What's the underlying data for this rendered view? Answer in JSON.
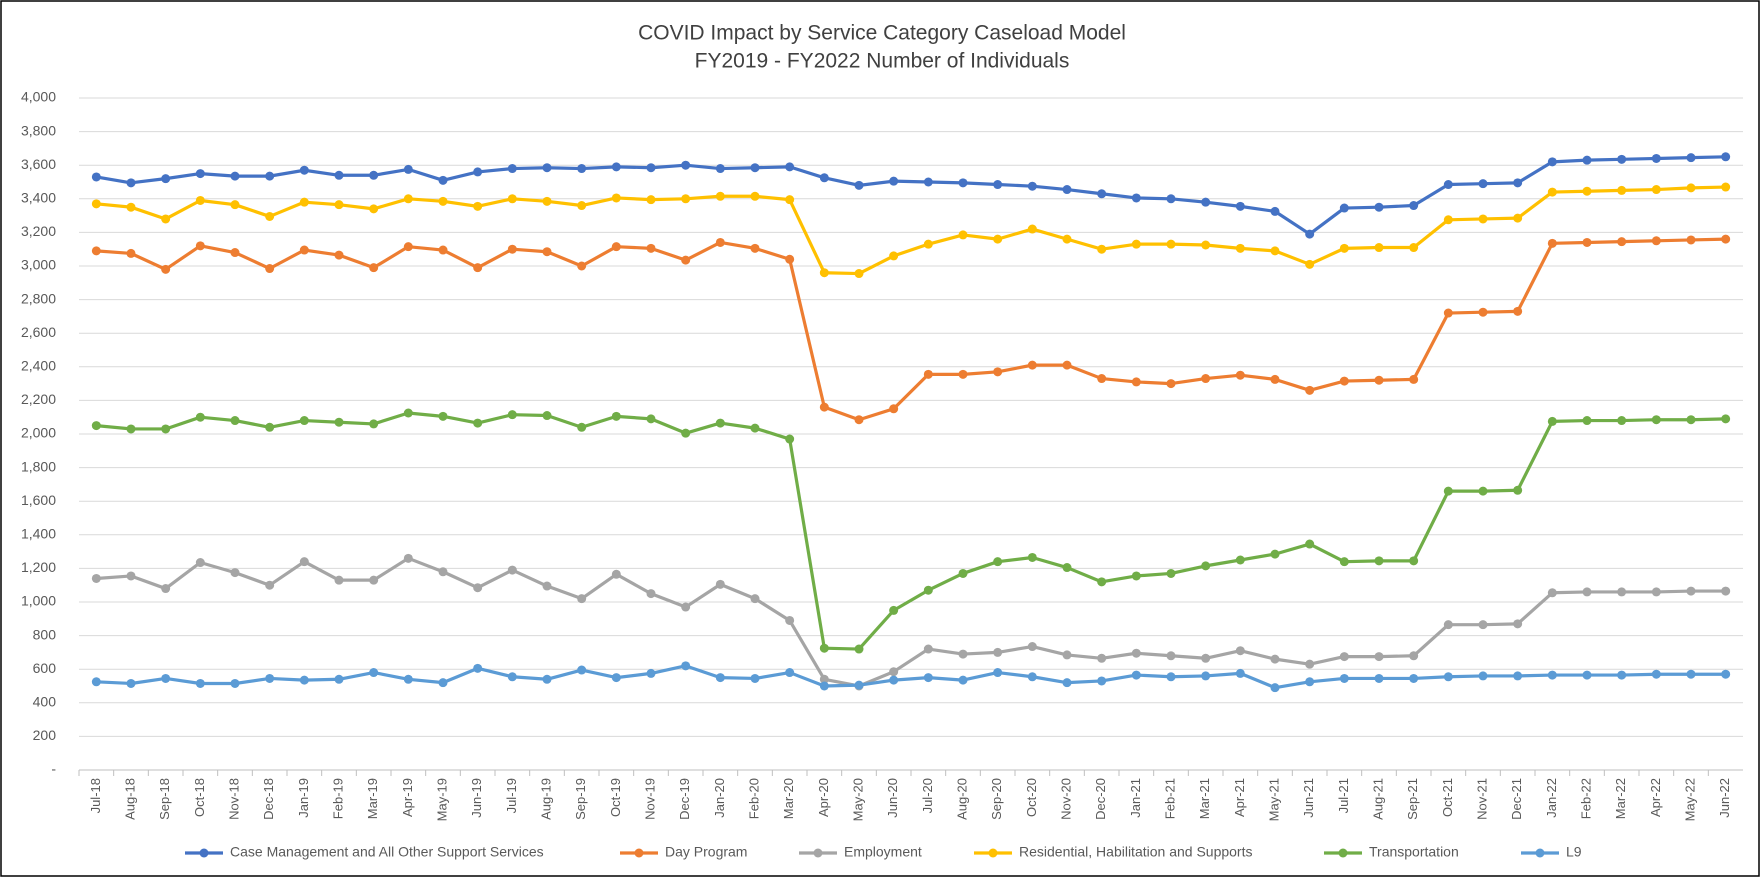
{
  "chart_data": {
    "type": "line",
    "title": "COVID Impact by Service Category Caseload Model",
    "subtitle": "FY2019 - FY2022 Number of Individuals",
    "categories": [
      "Jul-18",
      "Aug-18",
      "Sep-18",
      "Oct-18",
      "Nov-18",
      "Dec-18",
      "Jan-19",
      "Feb-19",
      "Mar-19",
      "Apr-19",
      "May-19",
      "Jun-19",
      "Jul-19",
      "Aug-19",
      "Sep-19",
      "Oct-19",
      "Nov-19",
      "Dec-19",
      "Jan-20",
      "Feb-20",
      "Mar-20",
      "Apr-20",
      "May-20",
      "Jun-20",
      "Jul-20",
      "Aug-20",
      "Sep-20",
      "Oct-20",
      "Nov-20",
      "Dec-20",
      "Jan-21",
      "Feb-21",
      "Mar-21",
      "Apr-21",
      "May-21",
      "Jun-21",
      "Jul-21",
      "Aug-21",
      "Sep-21",
      "Oct-21",
      "Nov-21",
      "Dec-21",
      "Jan-22",
      "Feb-22",
      "Mar-22",
      "Apr-22",
      "May-22",
      "Jun-22"
    ],
    "series": [
      {
        "name": "Case Management and All Other Support Services",
        "color": "#4472c4",
        "values": [
          3530,
          3495,
          3520,
          3550,
          3535,
          3535,
          3570,
          3540,
          3540,
          3575,
          3510,
          3560,
          3580,
          3585,
          3580,
          3590,
          3585,
          3600,
          3580,
          3585,
          3590,
          3525,
          3480,
          3505,
          3500,
          3495,
          3485,
          3475,
          3455,
          3430,
          3405,
          3400,
          3380,
          3355,
          3325,
          3190,
          3345,
          3350,
          3360,
          3485,
          3490,
          3495,
          3620,
          3630,
          3635,
          3640,
          3645,
          3650
        ]
      },
      {
        "name": "Day Program",
        "color": "#ed7d31",
        "values": [
          3090,
          3075,
          2980,
          3120,
          3080,
          2985,
          3095,
          3065,
          2990,
          3115,
          3095,
          2990,
          3100,
          3085,
          3000,
          3115,
          3105,
          3035,
          3140,
          3105,
          3040,
          2160,
          2085,
          2150,
          2355,
          2355,
          2370,
          2410,
          2410,
          2330,
          2310,
          2300,
          2330,
          2350,
          2325,
          2260,
          2315,
          2320,
          2325,
          2720,
          2725,
          2730,
          3135,
          3140,
          3145,
          3150,
          3155,
          3160
        ]
      },
      {
        "name": "Employment",
        "color": "#a5a5a5",
        "values": [
          1140,
          1155,
          1080,
          1235,
          1175,
          1100,
          1240,
          1130,
          1130,
          1260,
          1180,
          1085,
          1190,
          1095,
          1020,
          1165,
          1050,
          970,
          1105,
          1020,
          890,
          540,
          500,
          585,
          720,
          690,
          700,
          735,
          685,
          665,
          695,
          680,
          665,
          710,
          660,
          630,
          675,
          675,
          680,
          865,
          865,
          870,
          1055,
          1060,
          1060,
          1060,
          1065,
          1065
        ]
      },
      {
        "name": "Residential, Habilitation and Supports",
        "color": "#ffc000",
        "values": [
          3370,
          3350,
          3280,
          3390,
          3365,
          3295,
          3380,
          3365,
          3340,
          3400,
          3385,
          3355,
          3400,
          3385,
          3360,
          3405,
          3395,
          3400,
          3415,
          3415,
          3395,
          2960,
          2955,
          3060,
          3130,
          3185,
          3160,
          3220,
          3160,
          3100,
          3130,
          3130,
          3125,
          3105,
          3090,
          3010,
          3105,
          3110,
          3110,
          3275,
          3280,
          3285,
          3440,
          3445,
          3450,
          3455,
          3465,
          3470
        ]
      },
      {
        "name": "Transportation",
        "color": "#70ad47",
        "values": [
          2050,
          2030,
          2030,
          2100,
          2080,
          2040,
          2080,
          2070,
          2060,
          2125,
          2105,
          2065,
          2115,
          2110,
          2040,
          2105,
          2090,
          2005,
          2065,
          2035,
          1970,
          725,
          720,
          950,
          1070,
          1170,
          1240,
          1265,
          1205,
          1120,
          1155,
          1170,
          1215,
          1250,
          1285,
          1345,
          1240,
          1245,
          1245,
          1660,
          1660,
          1665,
          2075,
          2080,
          2080,
          2085,
          2085,
          2090
        ]
      },
      {
        "name": "L9",
        "color": "#5b9bd5",
        "values": [
          525,
          515,
          545,
          515,
          515,
          545,
          535,
          540,
          580,
          540,
          520,
          605,
          555,
          540,
          595,
          550,
          575,
          620,
          550,
          545,
          580,
          500,
          505,
          535,
          550,
          535,
          580,
          555,
          520,
          530,
          565,
          555,
          560,
          575,
          490,
          525,
          545,
          545,
          545,
          555,
          560,
          560,
          565,
          565,
          565,
          570,
          570,
          570
        ]
      }
    ],
    "ylim": [
      0,
      4000
    ],
    "yticks": [
      {
        "value": 0,
        "label": "-"
      },
      200,
      400,
      600,
      800,
      {
        "value": 1000,
        "label": "1,000"
      },
      {
        "value": 1200,
        "label": "1,200"
      },
      {
        "value": 1400,
        "label": "1,400"
      },
      {
        "value": 1600,
        "label": "1,600"
      },
      {
        "value": 1800,
        "label": "1,800"
      },
      {
        "value": 2000,
        "label": "2,000"
      },
      {
        "value": 2200,
        "label": "2,200"
      },
      {
        "value": 2400,
        "label": "2,400"
      },
      {
        "value": 2600,
        "label": "2,600"
      },
      {
        "value": 2800,
        "label": "2,800"
      },
      {
        "value": 3000,
        "label": "3,000"
      },
      {
        "value": 3200,
        "label": "3,200"
      },
      {
        "value": 3400,
        "label": "3,400"
      },
      {
        "value": 3600,
        "label": "3,600"
      },
      {
        "value": 3800,
        "label": "3,800"
      },
      {
        "value": 4000,
        "label": "4,000"
      }
    ],
    "grid": true,
    "legend": "bottom"
  }
}
